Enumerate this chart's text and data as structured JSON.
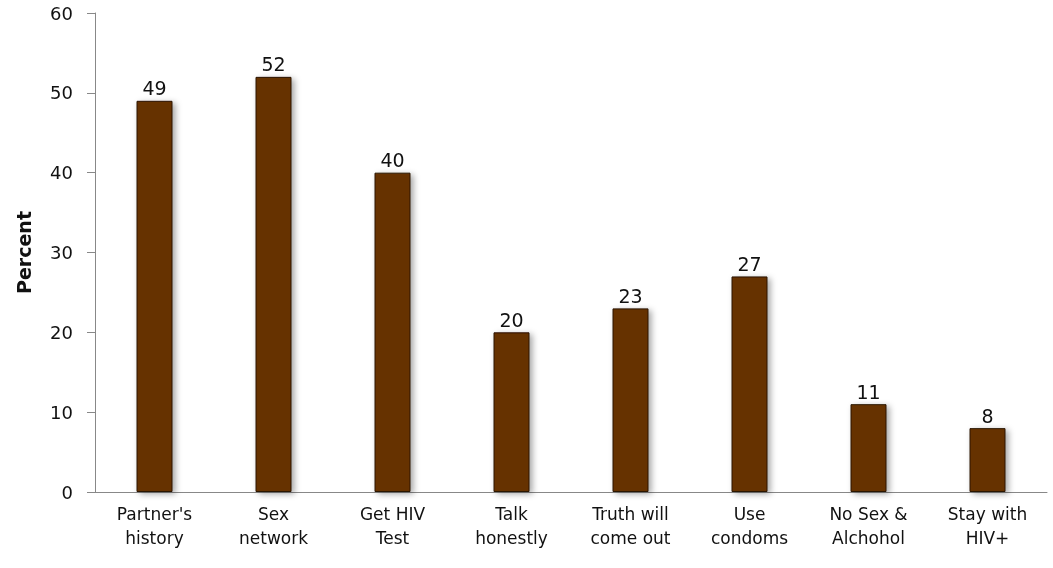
{
  "chart_data": {
    "type": "bar",
    "ylabel": "Percent",
    "categories": [
      "Partner's\nhistory",
      "Sex\nnetwork",
      "Get HIV\nTest",
      "Talk\nhonestly",
      "Truth will\ncome out",
      "Use\ncondoms",
      "No Sex &\nAlchohol",
      "Stay with\nHIV+"
    ],
    "values": [
      49,
      52,
      40,
      20,
      23,
      27,
      11,
      8
    ],
    "color": "#663300",
    "ylim": [
      0,
      60
    ],
    "yticks": [
      0,
      10,
      20,
      30,
      40,
      50,
      60
    ],
    "data_labels": true,
    "grid": false
  }
}
